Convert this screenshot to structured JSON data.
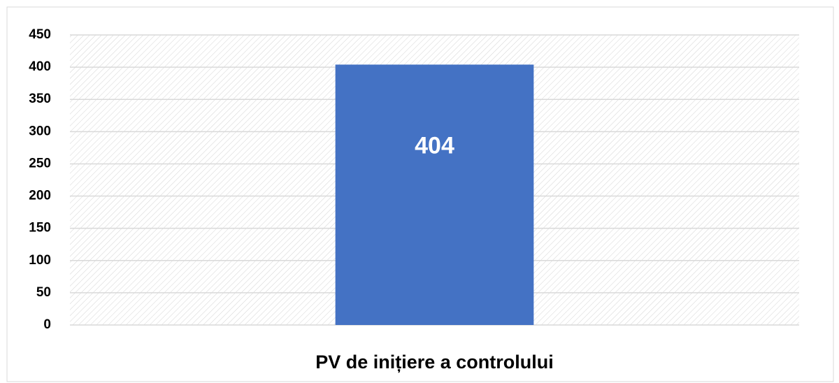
{
  "chart_data": {
    "type": "bar",
    "categories": [
      "PV de inițiere a controlului"
    ],
    "values": [
      404
    ],
    "color": "#4472c4",
    "ylim": [
      0,
      450
    ],
    "yticks": [
      0,
      50,
      100,
      150,
      200,
      250,
      300,
      350,
      400,
      450
    ],
    "grid": true
  }
}
